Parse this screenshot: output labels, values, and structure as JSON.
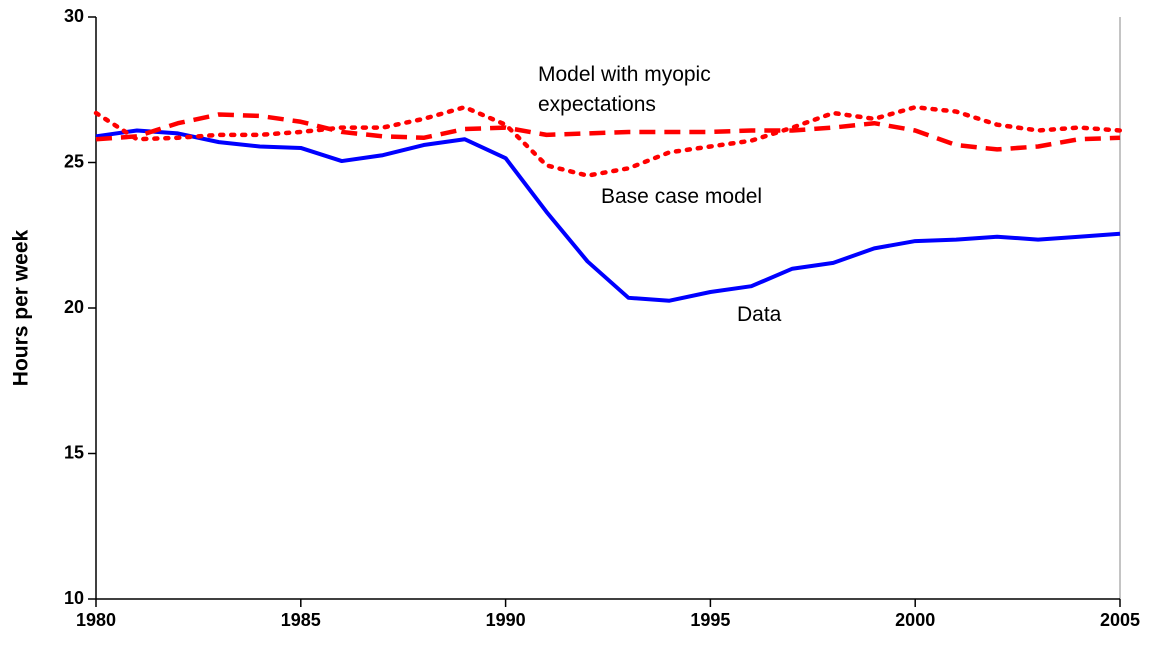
{
  "chart_data": {
    "type": "line",
    "y_label": "Hours per week",
    "x": [
      1980,
      1981,
      1982,
      1983,
      1984,
      1985,
      1986,
      1987,
      1988,
      1989,
      1990,
      1991,
      1992,
      1993,
      1994,
      1995,
      1996,
      1997,
      1998,
      1999,
      2000,
      2001,
      2002,
      2003,
      2004,
      2005
    ],
    "series": [
      {
        "color": "#0000ff",
        "style": "solid",
        "values": [
          25.9,
          26.1,
          26.0,
          25.7,
          25.55,
          25.5,
          25.05,
          25.25,
          25.6,
          25.8,
          25.15,
          23.3,
          21.6,
          20.35,
          20.25,
          20.55,
          20.75,
          21.35,
          21.55,
          22.05,
          22.3,
          22.35,
          22.45,
          22.35,
          22.45,
          22.55
        ]
      },
      {
        "color": "#ff0000",
        "style": "dotted",
        "values": [
          26.7,
          25.8,
          25.85,
          25.95,
          25.95,
          26.05,
          26.2,
          26.2,
          26.5,
          26.9,
          26.3,
          24.9,
          24.55,
          24.8,
          25.35,
          25.55,
          25.75,
          26.2,
          26.7,
          26.5,
          26.9,
          26.75,
          26.3,
          26.1,
          26.2,
          26.1
        ]
      },
      {
        "color": "#ff0000",
        "style": "dashed",
        "values": [
          25.8,
          25.9,
          26.35,
          26.65,
          26.6,
          26.4,
          26.05,
          25.9,
          25.85,
          26.15,
          26.2,
          25.95,
          26.0,
          26.05,
          26.05,
          26.05,
          26.1,
          26.1,
          26.2,
          26.35,
          26.1,
          25.6,
          25.45,
          25.55,
          25.8,
          25.85
        ]
      }
    ],
    "annotations": [
      "Data",
      "Base case model",
      "Model with myopic expectations"
    ],
    "xlim": [
      1980,
      2005
    ],
    "xticks": [
      1980,
      1985,
      1990,
      1995,
      2000,
      2005
    ],
    "ylim": [
      10,
      30
    ],
    "yticks": [
      10,
      15,
      20,
      25,
      30
    ]
  }
}
